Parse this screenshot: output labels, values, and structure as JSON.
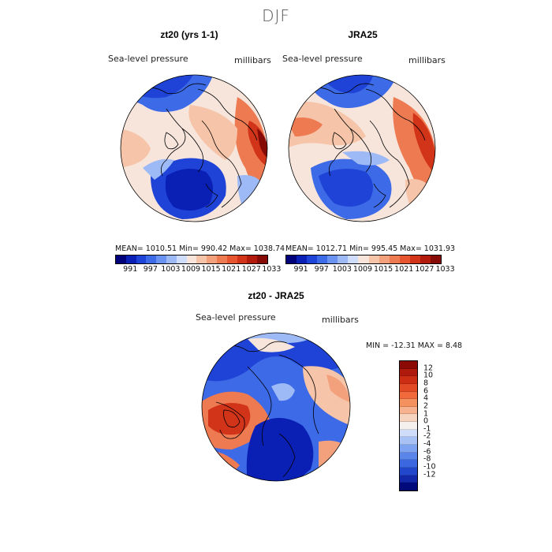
{
  "season": "DJF",
  "panels": [
    {
      "title": "zt20 (yrs 1-1)",
      "field_label": "Sea-level pressure",
      "units": "millibars",
      "stats": {
        "mean": "1010.51",
        "min": "990.42",
        "max": "1038.74"
      },
      "stats_text": "MEAN= 1010.51   Min= 990.42   Max= 1038.74"
    },
    {
      "title": "JRA25",
      "field_label": "Sea-level pressure",
      "units": "millibars",
      "stats": {
        "mean": "1012.71",
        "min": "995.45",
        "max": "1031.93"
      },
      "stats_text": "MEAN= 1012.71   Min= 995.45   Max= 1031.93"
    },
    {
      "title": "zt20 - JRA25",
      "field_label": "Sea-level pressure",
      "units": "millibars",
      "stats": {
        "min": "-12.31",
        "max": "8.48"
      },
      "stats_text": "MIN = -12.31  MAX =   8.48"
    }
  ],
  "abs_colorbar": {
    "colors": [
      "#00007a",
      "#0a1fb4",
      "#1f43d6",
      "#3d6ae6",
      "#6a92f0",
      "#9dbaf6",
      "#cfdcfa",
      "#f7e5dc",
      "#f6c4a8",
      "#f3a07c",
      "#ee7a52",
      "#e65530",
      "#d2341a",
      "#b21a0c",
      "#860b06"
    ],
    "tick_labels": [
      "991",
      "997",
      "1003",
      "1009",
      "1015",
      "1021",
      "1027",
      "1033"
    ]
  },
  "diff_colorbar": {
    "colors": [
      "#8b0a05",
      "#b01a0c",
      "#cc2e14",
      "#e24a25",
      "#f06a3c",
      "#f5905f",
      "#f6b28e",
      "#f5d3bf",
      "#f5f0ee",
      "#cfdcfa",
      "#a9c2f6",
      "#7ea3f0",
      "#5a86ea",
      "#3b67e0",
      "#2246cc",
      "#1228a8",
      "#000a7a"
    ],
    "tick_labels": [
      "12",
      "10",
      "8",
      "6",
      "4",
      "2",
      "1",
      "0",
      "-1",
      "-2",
      "-4",
      "-6",
      "-8",
      "-10",
      "-12"
    ]
  },
  "map_colors": {
    "deep_blue": "#0a1fb4",
    "blue": "#1f43d6",
    "mid_blue": "#3d6ae6",
    "light_blue": "#9dbaf6",
    "pale": "#f7e5dc",
    "light_red": "#f6c4a8",
    "orange": "#ee7a52",
    "red": "#d2341a",
    "dark_red": "#860b06"
  }
}
